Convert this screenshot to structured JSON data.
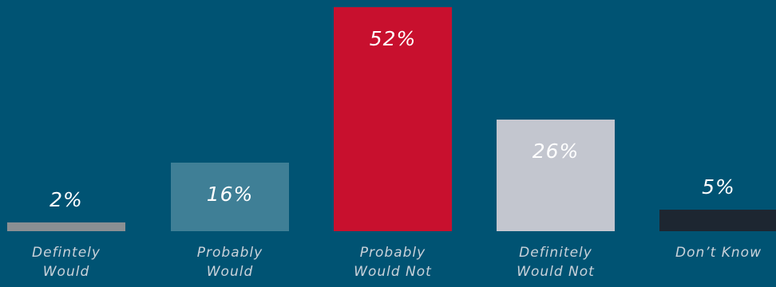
{
  "chart_data": {
    "type": "bar",
    "categories": [
      [
        "Defintely",
        "Would"
      ],
      [
        "Probably",
        "Would"
      ],
      [
        "Probably",
        "Would Not"
      ],
      [
        "Definitely",
        "Would Not"
      ],
      [
        "Don’t Know"
      ]
    ],
    "values": [
      2,
      16,
      52,
      26,
      5
    ],
    "value_labels": [
      "2%",
      "16%",
      "52%",
      "26%",
      "5%"
    ],
    "bar_colors": [
      "#8a8f93",
      "#3f7f96",
      "#c8102e",
      "#c3c6cf",
      "#1d2631"
    ],
    "ylim": [
      0,
      52
    ],
    "grid": false,
    "legend": "none"
  }
}
